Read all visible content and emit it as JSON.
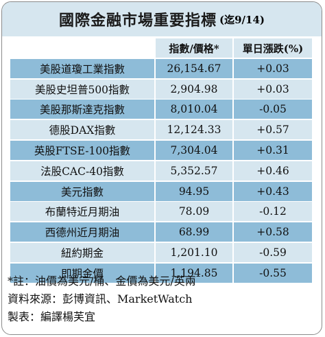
{
  "title": "國際金融市場重要指標",
  "subtitle": "(迄9/14)",
  "columns": [
    "",
    "指數/價格*",
    "單日漲跌(%)"
  ],
  "rows": [
    {
      "name": "美股道瓊工業指數",
      "value": "26,154.67",
      "change": "+0.03"
    },
    {
      "name": "美股史坦普500指數",
      "value": "2,904.98",
      "change": "+0.03"
    },
    {
      "name": "美股那斯達克指數",
      "value": "8,010.04",
      "change": "-0.05"
    },
    {
      "name": "德股DAX指數",
      "value": "12,124.33",
      "change": "+0.57"
    },
    {
      "name": "英股FTSE-100指數",
      "value": "7,304.04",
      "change": "+0.31"
    },
    {
      "name": "法股CAC-40指數",
      "value": "5,352.57",
      "change": "+0.46"
    },
    {
      "name": "美元指數",
      "value": "94.95",
      "change": "+0.43"
    },
    {
      "name": "布蘭特近月期油",
      "value": "78.09",
      "change": "-0.12"
    },
    {
      "name": "西德州近月期油",
      "value": "68.99",
      "change": "+0.58"
    },
    {
      "name": "紐約期金",
      "value": "1,201.10",
      "change": "-0.59"
    },
    {
      "name": "即期金價",
      "value": "1,194.85",
      "change": "-0.55"
    }
  ],
  "notes": {
    "footnote": "*註：油價為美元/桶、金價為美元/英兩",
    "source": "資料來源：彭博資訊、MarketWatch",
    "editor": "製表：編譯楊芙宜"
  },
  "colors": {
    "header_bg": "#d6e6ef",
    "row_dark": "#8ebcd8",
    "row_light": "#d6e6ef",
    "border": "#8a8a8a"
  }
}
